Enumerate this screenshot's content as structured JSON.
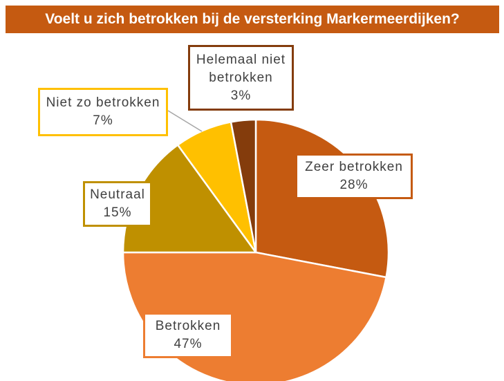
{
  "chart_data": {
    "type": "pie",
    "title": "Voelt u zich betrokken bij de versterking Markermeerdijken?",
    "categories": [
      "Zeer betrokken",
      "Betrokken",
      "Neutraal",
      "Niet zo betrokken",
      "Helemaal niet betrokken"
    ],
    "values": [
      28,
      47,
      15,
      7,
      3
    ],
    "value_labels": [
      "28%",
      "47%",
      "15%",
      "7%",
      "3%"
    ],
    "colors": [
      "#c55a11",
      "#ed7d31",
      "#bf9000",
      "#ffc000",
      "#843c0c"
    ]
  }
}
